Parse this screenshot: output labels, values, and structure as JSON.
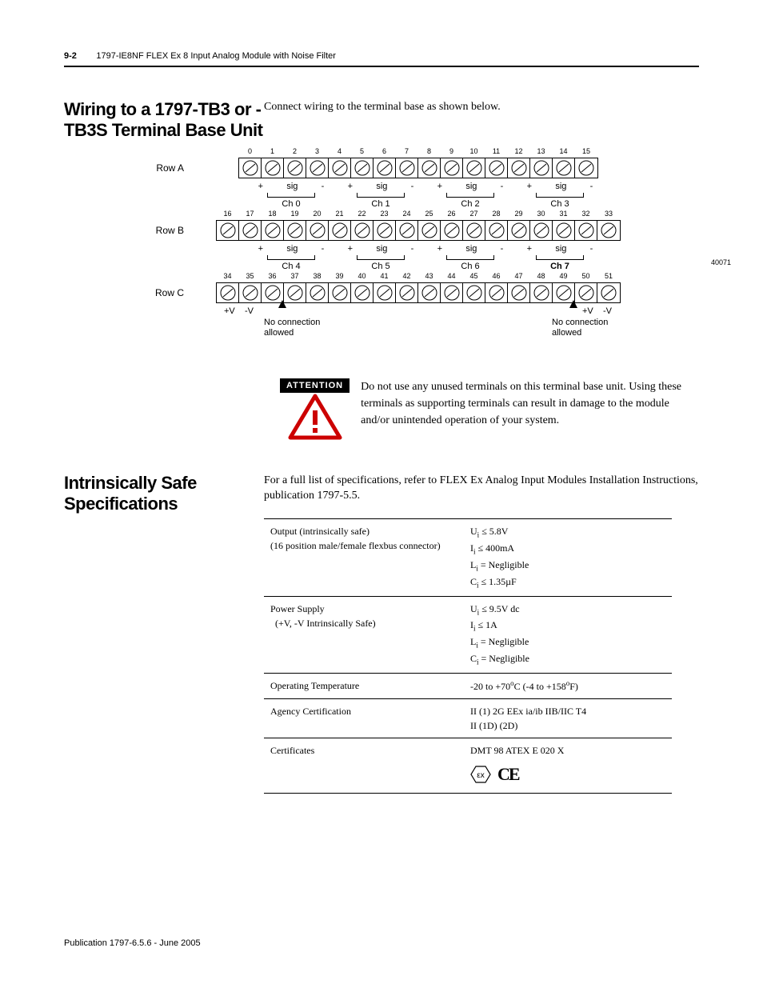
{
  "header": {
    "page_num": "9-2",
    "title": "1797-IE8NF FLEX Ex 8 Input Analog Module with Noise Filter"
  },
  "section1": {
    "title": "Wiring to a 1797-TB3 or -TB3S Terminal Base Unit",
    "body": "Connect wiring to the terminal base as shown below."
  },
  "diagram": {
    "row_labels": [
      "Row A",
      "Row B",
      "Row C"
    ],
    "rowA_nums": [
      "0",
      "1",
      "2",
      "3",
      "4",
      "5",
      "6",
      "7",
      "8",
      "9",
      "10",
      "11",
      "12",
      "13",
      "14",
      "15"
    ],
    "rowB_nums": [
      "16",
      "17",
      "18",
      "19",
      "20",
      "21",
      "22",
      "23",
      "24",
      "25",
      "26",
      "27",
      "28",
      "29",
      "30",
      "31",
      "32",
      "33"
    ],
    "rowC_nums": [
      "34",
      "35",
      "36",
      "37",
      "38",
      "39",
      "40",
      "41",
      "42",
      "43",
      "44",
      "45",
      "46",
      "47",
      "48",
      "49",
      "50",
      "51"
    ],
    "sig_marks": [
      "+",
      "sig",
      "-"
    ],
    "channels_a": [
      "Ch 0",
      "Ch 1",
      "Ch 2",
      "Ch 3"
    ],
    "channels_b": [
      "Ch 4",
      "Ch 5",
      "Ch 6",
      "Ch 7"
    ],
    "plusV": "+V",
    "minusV": "-V",
    "no_conn": "No connection allowed",
    "code": "40071"
  },
  "attention": {
    "label": "ATTENTION",
    "text": "Do not use any unused terminals on this terminal base unit. Using these terminals as supporting terminals can result in damage to the module and/or unintended operation of your system."
  },
  "section2": {
    "title": "Intrinsically Safe Specifications",
    "body": "For a full list of specifications, refer to FLEX Ex Analog Input Modules Installation Instructions, publication 1797-5.5."
  },
  "spec_table": {
    "rows": [
      {
        "label": "Output (intrinsically safe)\n(16 position male/female flexbus connector)",
        "value_lines": [
          "U_i ≤ 5.8V",
          "I_i ≤ 400mA",
          "L_i = Negligible",
          "C_i ≤ 1.35µF"
        ]
      },
      {
        "label": "Power Supply\n  (+V, -V Intrinsically Safe)",
        "value_lines": [
          "U_i ≤ 9.5V dc",
          "I_i ≤ 1A",
          "L_i = Negligible",
          "C_i = Negligible"
        ]
      },
      {
        "label": "Operating Temperature",
        "value_lines": [
          "-20 to +70°C (-4 to +158°F)"
        ]
      },
      {
        "label": "Agency Certification",
        "value_lines": [
          "II (1) 2G EEx ia/ib IIB/IIC T4",
          "II (1D) (2D)"
        ]
      },
      {
        "label": "Certificates",
        "value_lines": [
          "DMT 98 ATEX E 020 X"
        ]
      }
    ]
  },
  "footer": {
    "publication": "Publication 1797-6.5.6 - June 2005"
  },
  "colors": {
    "text": "#000000",
    "bg": "#ffffff"
  }
}
